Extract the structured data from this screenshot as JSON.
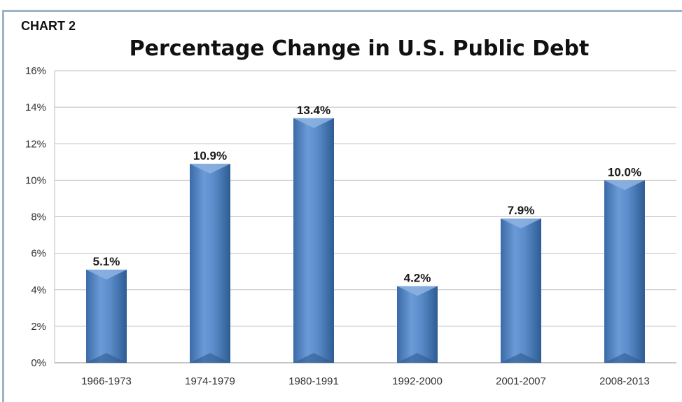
{
  "chart_data": {
    "type": "bar",
    "label": "CHART 2",
    "title": "Percentage Change in U.S. Public Debt",
    "categories": [
      "1966-1973",
      "1974-1979",
      "1980-1991",
      "1992-2000",
      "2001-2007",
      "2008-2013"
    ],
    "values": [
      5.1,
      10.9,
      13.4,
      4.2,
      7.9,
      10.0
    ],
    "data_labels": [
      "5.1%",
      "10.9%",
      "13.4%",
      "4.2%",
      "7.9%",
      "10.0%"
    ],
    "ylim": [
      0,
      16
    ],
    "yticks": [
      0,
      2,
      4,
      6,
      8,
      10,
      12,
      14,
      16
    ],
    "ytick_labels": [
      "0%",
      "2%",
      "4%",
      "6%",
      "8%",
      "10%",
      "12%",
      "14%",
      "16%"
    ],
    "xlabel": "",
    "ylabel": "",
    "grid": true,
    "legend": "none",
    "colors": {
      "bar": "#4f81bd",
      "bar_light": "#8db3e2",
      "bar_dark": "#2f5a8f",
      "grid": "#bfbfbf",
      "border": "#9cb3c9"
    }
  }
}
